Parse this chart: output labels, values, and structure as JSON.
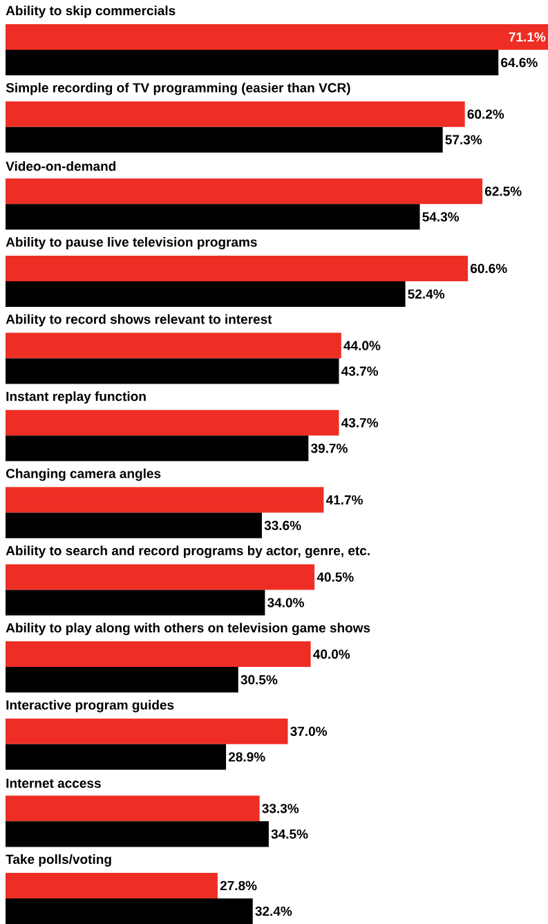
{
  "chart_data": {
    "type": "bar",
    "orientation": "horizontal",
    "categories": [
      "Ability to skip commercials",
      "Simple recording of TV programming (easier than VCR)",
      "Video-on-demand",
      "Ability to pause live television programs",
      "Ability to record shows relevant to interest",
      "Instant replay function",
      "Changing camera angles",
      "Ability to search and record programs by actor, genre, etc.",
      "Ability to play along with others on television game shows",
      "Interactive program guides",
      "Internet access",
      "Take polls/voting"
    ],
    "series": [
      {
        "color": "#ee2e24",
        "values": [
          71.1,
          60.2,
          62.5,
          60.6,
          44.0,
          43.7,
          41.7,
          40.5,
          40.0,
          37.0,
          33.3,
          27.8
        ],
        "value_labels": [
          "71.1%",
          "60.2%",
          "62.5%",
          "60.6%",
          "44.0%",
          "43.7%",
          "41.7%",
          "40.5%",
          "40.0%",
          "37.0%",
          "33.3%",
          "27.8%"
        ]
      },
      {
        "color": "#000000",
        "values": [
          64.6,
          57.3,
          54.3,
          52.4,
          43.7,
          39.7,
          33.6,
          34.0,
          30.5,
          28.9,
          34.5,
          32.4
        ],
        "value_labels": [
          "64.6%",
          "57.3%",
          "54.3%",
          "52.4%",
          "43.7%",
          "39.7%",
          "33.6%",
          "34.0%",
          "30.5%",
          "28.9%",
          "34.5%",
          "32.4%"
        ]
      }
    ]
  }
}
